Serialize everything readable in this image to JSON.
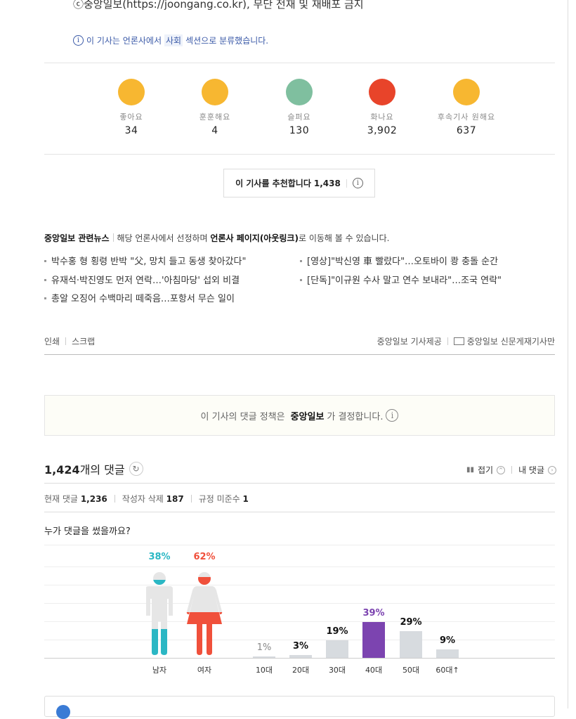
{
  "article": {
    "copyright": "ⓒ중앙일보(https://joongang.co.kr), 무단 전재 및 재배포 금지",
    "section_note_pre": "이 기사는 언론사에서",
    "section_name": "사회",
    "section_note_post": "섹션으로 분류했습니다."
  },
  "reactions": [
    {
      "label": "좋아요",
      "count": "34",
      "icon": "smile-emoji-icon",
      "color": "#f7b731"
    },
    {
      "label": "훈훈해요",
      "count": "4",
      "icon": "warm-emoji-icon",
      "color": "#f7b731"
    },
    {
      "label": "슬퍼요",
      "count": "130",
      "icon": "sad-emoji-icon",
      "color": "#7fbf9f"
    },
    {
      "label": "화나요",
      "count": "3,902",
      "icon": "angry-emoji-icon",
      "color": "#e8442a"
    },
    {
      "label": "후속기사 원해요",
      "count": "637",
      "icon": "glasses-emoji-icon",
      "color": "#f7b731"
    }
  ],
  "recommend": {
    "label": "이 기사를 추천합니다",
    "count": "1,438"
  },
  "related": {
    "title": "중앙일보 관련뉴스",
    "desc_pre": "해당 언론사에서 선정하며",
    "desc_bold": "언론사 페이지(아웃링크)",
    "desc_post": "로 이동해 볼 수 있습니다.",
    "items": [
      "박수홍 형 횡령 반박 \"父, 망치 들고 동생 찾아갔다\"",
      "[영상]\"박신영 車 빨랐다\"…오토바이 쾅 충돌 순간",
      "유재석·박진영도 먼저 연락…'아침마당' 섭외 비결",
      "[단독]\"이규원 수사 말고 연수 보내라\"…조국 연락\"",
      "총알 오징어 수백마리 떼죽음…포항서 무슨 일이"
    ]
  },
  "tools": {
    "print": "인쇄",
    "scrap": "스크랩",
    "provider": "중앙일보 기사제공",
    "paper": "중앙일보 신문게재기사만"
  },
  "policy": {
    "pre": "이 기사의 댓글 정책은",
    "bold": "중앙일보",
    "post": "가 결정합니다."
  },
  "comments": {
    "count": "1,424",
    "count_suffix": "개의 댓글",
    "fold": "접기",
    "my": "내 댓글",
    "stats": [
      {
        "label": "현재 댓글",
        "value": "1,236"
      },
      {
        "label": "작성자 삭제",
        "value": "187"
      },
      {
        "label": "규정 미준수",
        "value": "1"
      }
    ],
    "who_title": "누가 댓글을 썼을까요?"
  },
  "chart_data": {
    "type": "bar",
    "gender": {
      "categories": [
        "남자",
        "여자"
      ],
      "values": [
        38,
        62
      ],
      "labels": [
        "38%",
        "62%"
      ],
      "colors": [
        "#2bb7c4",
        "#f0503b"
      ]
    },
    "age": {
      "categories": [
        "10대",
        "20대",
        "30대",
        "40대",
        "50대",
        "60대↑"
      ],
      "values": [
        1,
        3,
        19,
        39,
        29,
        9
      ],
      "labels": [
        "1%",
        "3%",
        "19%",
        "39%",
        "29%",
        "9%"
      ],
      "highlight_color": "#7c44b0",
      "bar_color": "#d7dbdf"
    }
  }
}
